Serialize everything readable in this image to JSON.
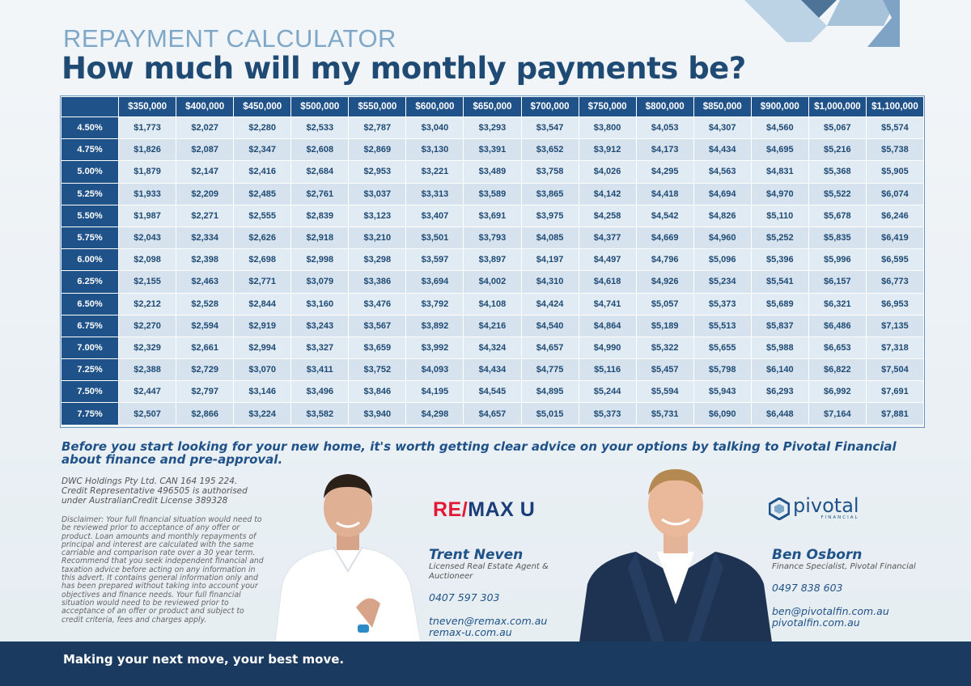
{
  "header": {
    "kicker": "REPAYMENT CALCULATOR",
    "headline": "How much will my monthly payments be?"
  },
  "table": {
    "columns": [
      "$350,000",
      "$400,000",
      "$450,000",
      "$500,000",
      "$550,000",
      "$600,000",
      "$650,000",
      "$700,000",
      "$750,000",
      "$800,000",
      "$850,000",
      "$900,000",
      "$1,000,000",
      "$1,100,000"
    ],
    "rows": [
      {
        "rate": "4.50%",
        "values": [
          "$1,773",
          "$2,027",
          "$2,280",
          "$2,533",
          "$2,787",
          "$3,040",
          "$3,293",
          "$3,547",
          "$3,800",
          "$4,053",
          "$4,307",
          "$4,560",
          "$5,067",
          "$5,574"
        ]
      },
      {
        "rate": "4.75%",
        "values": [
          "$1,826",
          "$2,087",
          "$2,347",
          "$2,608",
          "$2,869",
          "$3,130",
          "$3,391",
          "$3,652",
          "$3,912",
          "$4,173",
          "$4,434",
          "$4,695",
          "$5,216",
          "$5,738"
        ]
      },
      {
        "rate": "5.00%",
        "values": [
          "$1,879",
          "$2,147",
          "$2,416",
          "$2,684",
          "$2,953",
          "$3,221",
          "$3,489",
          "$3,758",
          "$4,026",
          "$4,295",
          "$4,563",
          "$4,831",
          "$5,368",
          "$5,905"
        ]
      },
      {
        "rate": "5.25%",
        "values": [
          "$1,933",
          "$2,209",
          "$2,485",
          "$2,761",
          "$3,037",
          "$3,313",
          "$3,589",
          "$3,865",
          "$4,142",
          "$4,418",
          "$4,694",
          "$4,970",
          "$5,522",
          "$6,074"
        ]
      },
      {
        "rate": "5.50%",
        "values": [
          "$1,987",
          "$2,271",
          "$2,555",
          "$2,839",
          "$3,123",
          "$3,407",
          "$3,691",
          "$3,975",
          "$4,258",
          "$4,542",
          "$4,826",
          "$5,110",
          "$5,678",
          "$6,246"
        ]
      },
      {
        "rate": "5.75%",
        "values": [
          "$2,043",
          "$2,334",
          "$2,626",
          "$2,918",
          "$3,210",
          "$3,501",
          "$3,793",
          "$4,085",
          "$4,377",
          "$4,669",
          "$4,960",
          "$5,252",
          "$5,835",
          "$6,419"
        ]
      },
      {
        "rate": "6.00%",
        "values": [
          "$2,098",
          "$2,398",
          "$2,698",
          "$2,998",
          "$3,298",
          "$3,597",
          "$3,897",
          "$4,197",
          "$4,497",
          "$4,796",
          "$5,096",
          "$5,396",
          "$5,996",
          "$6,595"
        ]
      },
      {
        "rate": "6.25%",
        "values": [
          "$2,155",
          "$2,463",
          "$2,771",
          "$3,079",
          "$3,386",
          "$3,694",
          "$4,002",
          "$4,310",
          "$4,618",
          "$4,926",
          "$5,234",
          "$5,541",
          "$6,157",
          "$6,773"
        ]
      },
      {
        "rate": "6.50%",
        "values": [
          "$2,212",
          "$2,528",
          "$2,844",
          "$3,160",
          "$3,476",
          "$3,792",
          "$4,108",
          "$4,424",
          "$4,741",
          "$5,057",
          "$5,373",
          "$5,689",
          "$6,321",
          "$6,953"
        ]
      },
      {
        "rate": "6.75%",
        "values": [
          "$2,270",
          "$2,594",
          "$2,919",
          "$3,243",
          "$3,567",
          "$3,892",
          "$4,216",
          "$4,540",
          "$4,864",
          "$5,189",
          "$5,513",
          "$5,837",
          "$6,486",
          "$7,135"
        ]
      },
      {
        "rate": "7.00%",
        "values": [
          "$2,329",
          "$2,661",
          "$2,994",
          "$3,327",
          "$3,659",
          "$3,992",
          "$4,324",
          "$4,657",
          "$4,990",
          "$5,322",
          "$5,655",
          "$5,988",
          "$6,653",
          "$7,318"
        ]
      },
      {
        "rate": "7.25%",
        "values": [
          "$2,388",
          "$2,729",
          "$3,070",
          "$3,411",
          "$3,752",
          "$4,093",
          "$4,434",
          "$4,775",
          "$5,116",
          "$5,457",
          "$5,798",
          "$6,140",
          "$6,822",
          "$7,504"
        ]
      },
      {
        "rate": "7.50%",
        "values": [
          "$2,447",
          "$2,797",
          "$3,146",
          "$3,496",
          "$3,846",
          "$4,195",
          "$4,545",
          "$4,895",
          "$5,244",
          "$5,594",
          "$5,943",
          "$6,293",
          "$6,992",
          "$7,691"
        ]
      },
      {
        "rate": "7.75%",
        "values": [
          "$2,507",
          "$2,866",
          "$3,224",
          "$3,582",
          "$3,940",
          "$4,298",
          "$4,657",
          "$5,015",
          "$5,373",
          "$5,731",
          "$6,090",
          "$6,448",
          "$7,164",
          "$7,881"
        ]
      }
    ]
  },
  "tagline": "Before you start looking for your new home, it's worth getting clear advice on your options by talking to Pivotal Financial about finance and pre-approval.",
  "entity": {
    "line1": "DWC Holdings Pty Ltd. CAN 164 195 224.",
    "line2": "Credit Representative 496505 is authorised",
    "line3": "under AustralianCredit License 389328"
  },
  "disclaimer": "Disclaimer: Your full financial situation would need to be reviewed prior to acceptance of any offer or product. Loan amounts and monthly repayments of principal and interest are calculated with the same carriable and comparison rate over a 30 year term. Recommend that you seek independent financial and taxation advice before acting on any information in this advert. It contains general information only and has been prepared without taking into account your objectives and finance needs. Your full financial situation would need to be reviewed prior to acceptance of an offer or product and subject to credit criteria, fees and charges apply.",
  "remax_logo": {
    "part1": "RE/",
    "part2": "MAX",
    "part3": " U"
  },
  "pivotal_logo": {
    "word": "pivotal",
    "sub": "FINANCIAL"
  },
  "agent1": {
    "name": "Trent Neven",
    "role": "Licensed Real Estate Agent & Auctioneer",
    "phone": "0407 597 303",
    "email": "tneven@remax.com.au",
    "web": "remax-u.com.au"
  },
  "agent2": {
    "name": "Ben Osborn",
    "role": "Finance Specialist, Pivotal Financial",
    "phone": "0497 838 603",
    "email": "ben@pivotalfin.com.au",
    "web": "pivotalfin.com.au"
  },
  "footer": {
    "text": "Making your next move, your best move."
  },
  "colors": {
    "navy": "#1f5289",
    "footer": "#1b3a60",
    "remax_red": "#e31837",
    "remax_blue": "#1b3e7a",
    "cell": "#e1ebf3",
    "kicker": "#7fa7c8"
  }
}
